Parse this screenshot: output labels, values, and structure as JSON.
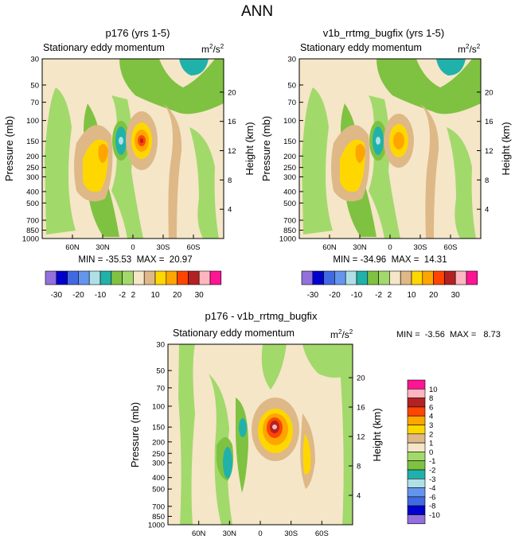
{
  "main_title": "ANN",
  "colors": {
    "background_fill": "#f5e6c8",
    "abs_fill": [
      "#9370db",
      "#0000cd",
      "#4169e1",
      "#6495ed",
      "#b0e0e6",
      "#20b2aa",
      "#7fc241",
      "#a2d96b",
      "#f5e6c8",
      "#deb887",
      "#ffd700",
      "#ffa500",
      "#ff4500",
      "#b22222",
      "#ffb6c1",
      "#ff1493"
    ],
    "diff_fill": [
      "#9370db",
      "#0000cd",
      "#4169e1",
      "#6495ed",
      "#b0e0e6",
      "#20b2aa",
      "#7fc241",
      "#a2d96b",
      "#f5e6c8",
      "#deb887",
      "#ffd700",
      "#ffa500",
      "#ff4500",
      "#b22222",
      "#ffb6c1",
      "#ff1493"
    ]
  },
  "chart_data": [
    {
      "type": "contour",
      "title": "p176 (yrs 1-5)",
      "subtitle": "Stationary eddy momentum",
      "units_label": "m²/s²",
      "ylabel": "Pressure (mb)",
      "ylabel_right": "Height (km)",
      "x_ticks": [
        "60N",
        "30N",
        "0",
        "30S",
        "60S"
      ],
      "x_tick_values": [
        60,
        30,
        0,
        -30,
        -60
      ],
      "xlim": [
        90,
        -90
      ],
      "y_ticks": [
        "30",
        "50",
        "70",
        "100",
        "150",
        "200",
        "250",
        "300",
        "400",
        "500",
        "700",
        "850",
        "1000"
      ],
      "y_tick_values": [
        30,
        50,
        70,
        100,
        150,
        200,
        250,
        300,
        400,
        500,
        700,
        850,
        1000
      ],
      "ylim": [
        30,
        1000
      ],
      "y_scale": "log",
      "height_ticks": [
        "4",
        "8",
        "12",
        "16",
        "20"
      ],
      "height_tick_values": [
        4,
        8,
        12,
        16,
        20
      ],
      "min_max_text": "MIN = -35.53  MAX =  20.97",
      "min": -35.53,
      "max": 20.97,
      "features": [
        {
          "kind": "positive",
          "lat": -12,
          "p": 150,
          "peak": 20.97
        },
        {
          "kind": "negative",
          "lat": 18,
          "p": 150,
          "peak": -35.53
        },
        {
          "kind": "positive",
          "lat": 38,
          "p": 220,
          "peak": 12
        }
      ]
    },
    {
      "type": "contour",
      "title": "v1b_rrtmg_bugfix (yrs 1-5)",
      "subtitle": "Stationary eddy momentum",
      "units_label": "m²/s²",
      "ylabel": "Pressure (mb)",
      "ylabel_right": "Height (km)",
      "x_ticks": [
        "60N",
        "30N",
        "0",
        "30S",
        "60S"
      ],
      "x_tick_values": [
        60,
        30,
        0,
        -30,
        -60
      ],
      "xlim": [
        90,
        -90
      ],
      "y_ticks": [
        "30",
        "50",
        "70",
        "100",
        "150",
        "200",
        "250",
        "300",
        "400",
        "500",
        "700",
        "850",
        "1000"
      ],
      "y_tick_values": [
        30,
        50,
        70,
        100,
        150,
        200,
        250,
        300,
        400,
        500,
        700,
        850,
        1000
      ],
      "ylim": [
        30,
        1000
      ],
      "y_scale": "log",
      "height_ticks": [
        "4",
        "8",
        "12",
        "16",
        "20"
      ],
      "height_tick_values": [
        4,
        8,
        12,
        16,
        20
      ],
      "min_max_text": "MIN = -34.96  MAX =  14.31",
      "min": -34.96,
      "max": 14.31,
      "features": [
        {
          "kind": "positive",
          "lat": -12,
          "p": 150,
          "peak": 14.31
        },
        {
          "kind": "negative",
          "lat": 18,
          "p": 150,
          "peak": -34.96
        },
        {
          "kind": "positive",
          "lat": 38,
          "p": 220,
          "peak": 12
        }
      ]
    },
    {
      "type": "contour",
      "title": "p176 - v1b_rrtmg_bugfix",
      "subtitle": "Stationary eddy momentum",
      "units_label": "m²/s²",
      "ylabel": "Pressure (mb)",
      "ylabel_right": "Height (km)",
      "x_ticks": [
        "60N",
        "30N",
        "0",
        "30S",
        "60S"
      ],
      "x_tick_values": [
        60,
        30,
        0,
        -30,
        -60
      ],
      "xlim": [
        90,
        -90
      ],
      "y_ticks": [
        "30",
        "50",
        "70",
        "100",
        "150",
        "200",
        "250",
        "300",
        "400",
        "500",
        "700",
        "850",
        "1000"
      ],
      "y_tick_values": [
        30,
        50,
        70,
        100,
        150,
        200,
        250,
        300,
        400,
        500,
        700,
        850,
        1000
      ],
      "ylim": [
        30,
        1000
      ],
      "y_scale": "log",
      "height_ticks": [
        "4",
        "8",
        "12",
        "16",
        "20"
      ],
      "height_tick_values": [
        4,
        8,
        12,
        16,
        20
      ],
      "min_max_text": "MIN =  -3.56  MAX =   8.73",
      "min": -3.56,
      "max": 8.73,
      "features": [
        {
          "kind": "positive",
          "lat": -12,
          "p": 150,
          "peak": 8.73
        },
        {
          "kind": "negative",
          "lat": 18,
          "p": 150,
          "peak": -3.56
        },
        {
          "kind": "positive",
          "lat": -30,
          "p": 230,
          "peak": 2
        }
      ]
    }
  ],
  "colorbar_abs": {
    "labels": [
      "-30",
      "-20",
      "-10",
      "-2",
      "2",
      "10",
      "20",
      "30"
    ],
    "n_boxes": 16
  },
  "colorbar_diff": {
    "labels": [
      "10",
      "8",
      "6",
      "4",
      "3",
      "2",
      "1",
      "0",
      "-1",
      "-2",
      "-3",
      "-4",
      "-6",
      "-8",
      "-10"
    ],
    "n_boxes": 16
  }
}
